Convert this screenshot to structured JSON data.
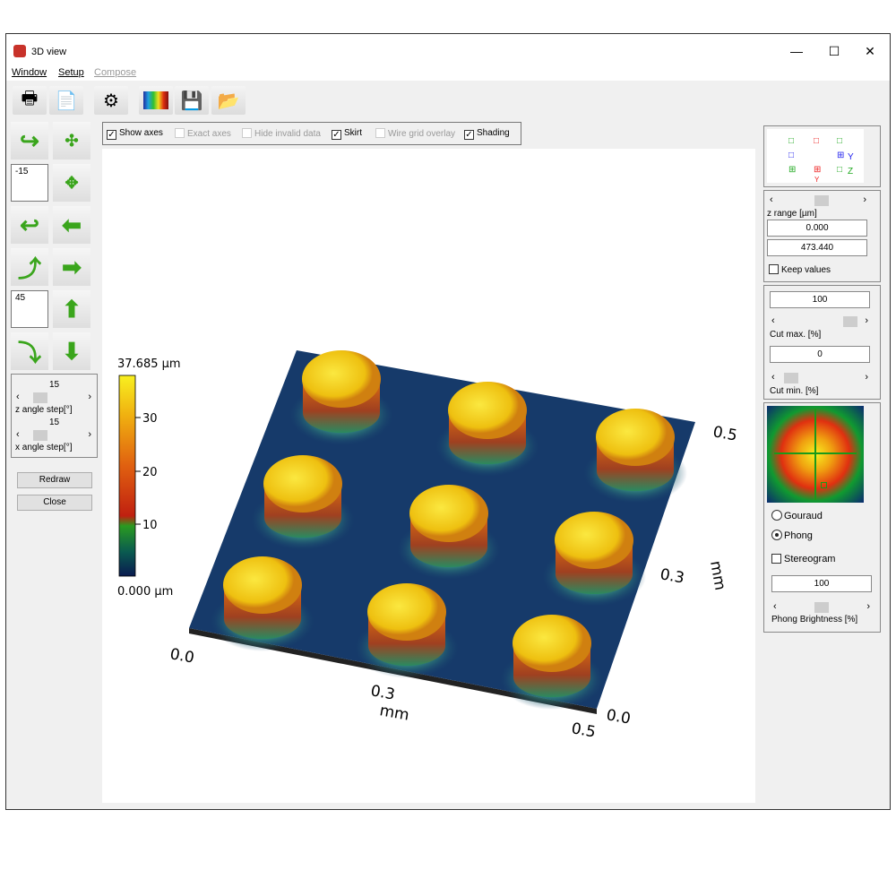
{
  "window": {
    "title": "3D view",
    "minimize": "—",
    "maximize": "☐",
    "close": "✕"
  },
  "menu": [
    "Window",
    "Setup",
    "Compose"
  ],
  "toolbar": [
    {
      "icon": "printer-icon",
      "g": "🖶"
    },
    {
      "icon": "export-document-icon",
      "g": "📄"
    },
    {
      "icon": "gear-icon",
      "g": "⚙"
    },
    {
      "icon": "color-palette-icon",
      "g": ""
    },
    {
      "icon": "save-icon",
      "g": "💾"
    },
    {
      "icon": "open-folder-icon",
      "g": "📂"
    }
  ],
  "left": {
    "z_angle_value": "-15",
    "x_angle_value": "45",
    "z_step": "15",
    "z_step_label": "z angle step[°]",
    "x_step": "15",
    "x_step_label": "x angle step[°]",
    "redraw": "Redraw",
    "close": "Close"
  },
  "options": [
    {
      "label": "Show axes",
      "checked": true,
      "enabled": true
    },
    {
      "label": "Exact axes",
      "checked": false,
      "enabled": false
    },
    {
      "label": "Hide invalid data",
      "checked": false,
      "enabled": false
    },
    {
      "label": "Skirt",
      "checked": true,
      "enabled": true
    },
    {
      "label": "Wire grid overlay",
      "checked": false,
      "enabled": false
    },
    {
      "label": "Shading",
      "checked": true,
      "enabled": true
    }
  ],
  "colorbar": {
    "max_label": "37.685 µm",
    "min_label": "0.000 µm",
    "ticks": [
      "30",
      "20",
      "10"
    ]
  },
  "axes": {
    "x_start": "0.0",
    "x_mid": "0.3",
    "x_end": "0.5",
    "x_unit": "mm",
    "y_start": "0.0",
    "y_mid": "0.3",
    "y_end": "0.5",
    "y_unit": "mm"
  },
  "right": {
    "orient_y": "Y",
    "orient_z": "Z",
    "orient_y2": "Y",
    "z_range_label": "z range [µm]",
    "z_min": "0.000",
    "z_max": "473.440",
    "keep_values": "Keep values",
    "cut_max": "100",
    "cut_max_label": "Cut max. [%]",
    "cut_min": "0",
    "cut_min_label": "Cut min. [%]",
    "gouraud": "Gouraud",
    "phong": "Phong",
    "shading_mode": "Phong",
    "stereogram": "Stereogram",
    "phong_brightness": "100",
    "phong_brightness_label": "Phong Brightness [%]"
  },
  "colors": {
    "accent_green": "#3aa51c",
    "surface_low": "#0a2a5a",
    "surface_high": "#f2d21a"
  }
}
